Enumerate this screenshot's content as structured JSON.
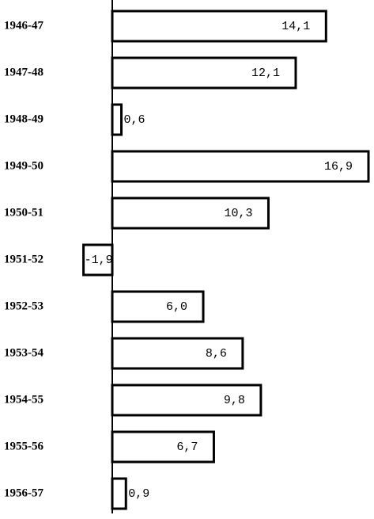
{
  "chart_data": {
    "type": "bar",
    "orientation": "horizontal",
    "categories": [
      "1946-47",
      "1947-48",
      "1948-49",
      "1949-50",
      "1950-51",
      "1951-52",
      "1952-53",
      "1953-54",
      "1954-55",
      "1955-56",
      "1956-57"
    ],
    "values": [
      14.1,
      12.1,
      0.6,
      16.9,
      10.3,
      -1.9,
      6.0,
      8.6,
      9.8,
      6.7,
      0.9
    ],
    "value_labels": [
      "14,1",
      "12,1",
      "0,6",
      "16,9",
      "10,3",
      "-1,9",
      "6,0",
      "8,6",
      "9,8",
      "6,7",
      "0,9"
    ],
    "color": "#ffffff"
  }
}
